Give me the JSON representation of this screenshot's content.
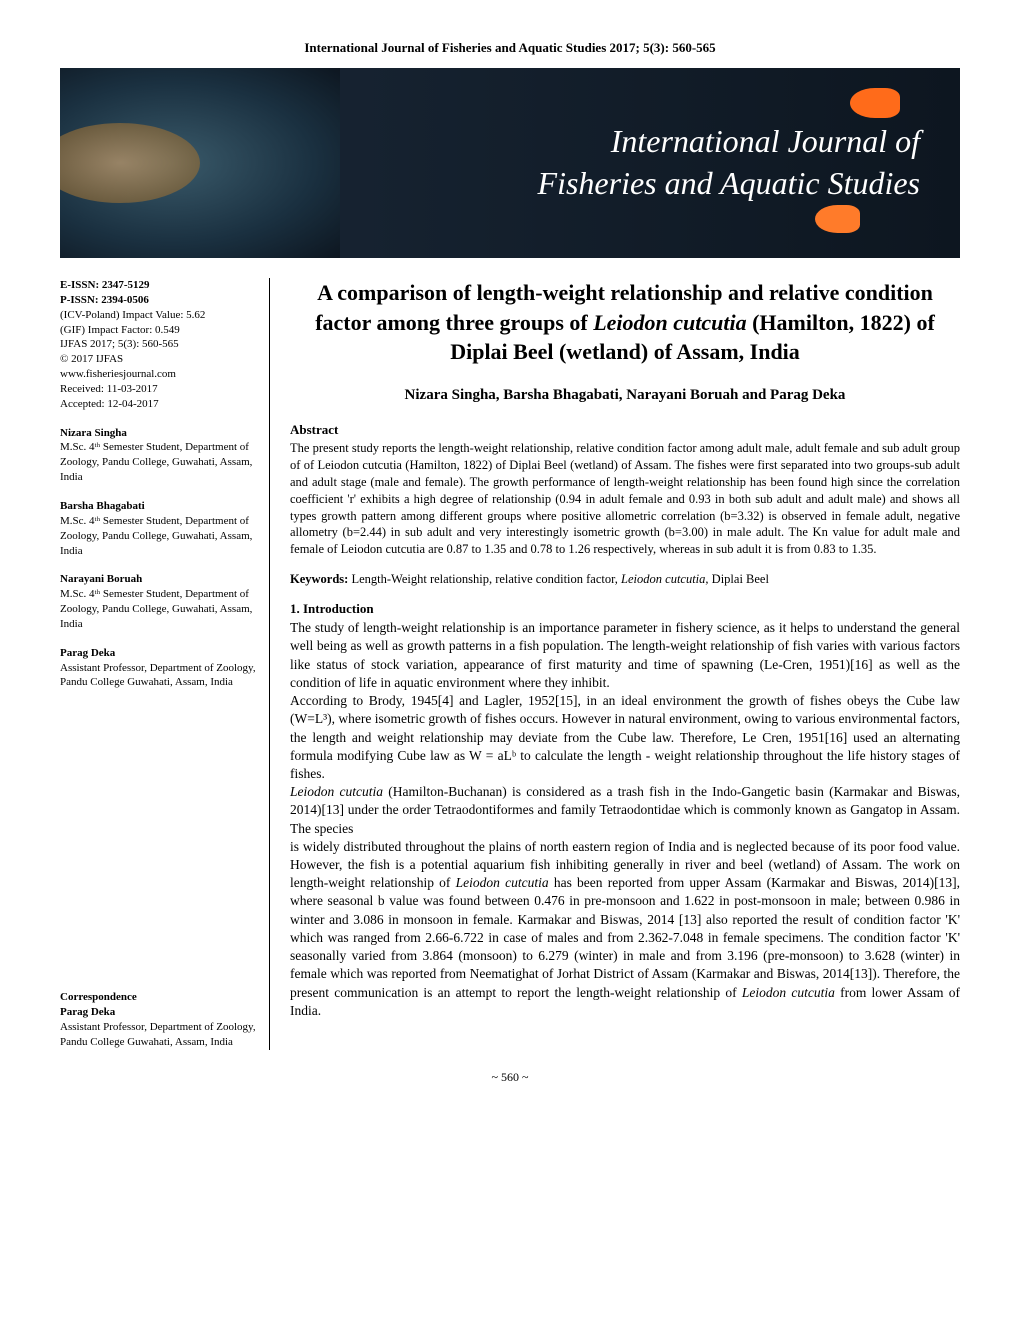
{
  "header": {
    "journal_line": "International Journal of Fisheries and Aquatic Studies 2017; 5(3): 560-565"
  },
  "banner": {
    "title_line1": "International Journal of",
    "title_line2": "Fisheries and Aquatic Studies",
    "bg_gradient_start": "#1a2838",
    "bg_gradient_end": "#0d1620",
    "fish_color": "#ff6b1a"
  },
  "sidebar": {
    "meta": {
      "eissn": "E-ISSN: 2347-5129",
      "pissn": "P-ISSN: 2394-0506",
      "icv": "(ICV-Poland) Impact Value: 5.62",
      "gif": "(GIF) Impact Factor: 0.549",
      "vol": "IJFAS 2017; 5(3): 560-565",
      "copyright": "© 2017 IJFAS",
      "url": "www.fisheriesjournal.com",
      "received": "Received: 11-03-2017",
      "accepted": "Accepted: 12-04-2017"
    },
    "authors": [
      {
        "name": "Nizara Singha",
        "affil": "M.Sc. 4ᵗʰ Semester Student, Department of Zoology, Pandu College, Guwahati, Assam, India"
      },
      {
        "name": "Barsha Bhagabati",
        "affil": "M.Sc. 4ᵗʰ Semester Student, Department of Zoology, Pandu College, Guwahati, Assam, India"
      },
      {
        "name": "Narayani Boruah",
        "affil": "M.Sc. 4ᵗʰ Semester Student, Department of Zoology, Pandu College, Guwahati, Assam, India"
      },
      {
        "name": "Parag Deka",
        "affil": "Assistant Professor, Department of Zoology, Pandu College Guwahati, Assam, India"
      }
    ],
    "correspondence": {
      "label": "Correspondence",
      "name": "Parag Deka",
      "affil": "Assistant Professor, Department of Zoology, Pandu College Guwahati, Assam, India"
    }
  },
  "article": {
    "title_part1": "A comparison of length-weight relationship and relative condition factor among three groups of ",
    "title_italic": "Leiodon cutcutia",
    "title_part2": " (Hamilton, 1822) of Diplai Beel (wetland) of Assam, India",
    "authors_line": "Nizara Singha, Barsha Bhagabati, Narayani Boruah and Parag Deka",
    "abstract_label": "Abstract",
    "abstract_text": "The present study reports the length-weight relationship, relative condition factor among adult male, adult female and sub adult group of of Leiodon cutcutia (Hamilton, 1822) of Diplai Beel (wetland) of Assam. The fishes were first separated into two groups-sub adult and adult stage (male and female). The growth performance of length-weight relationship has been found high since the correlation coefficient 'r' exhibits a high degree of relationship (0.94 in adult female and 0.93 in both sub adult and adult male) and shows all types growth pattern among different groups where positive allometric correlation (b=3.32) is observed in female adult, negative allometry (b=2.44) in sub adult and very interestingly isometric growth (b=3.00) in male adult. The Kn value for adult male and female of Leiodon cutcutia are 0.87 to 1.35 and 0.78 to 1.26 respectively, whereas in sub adult it is from 0.83 to 1.35.",
    "keywords_label": "Keywords:",
    "keywords_text": " Length-Weight relationship, relative condition factor, ",
    "keywords_italic": "Leiodon cutcutia,",
    "keywords_tail": " Diplai Beel",
    "intro_label": "1. Introduction",
    "intro_p1": "The study of length-weight relationship is an importance parameter in fishery science, as it helps to understand the general well being as well as growth patterns in a fish population. The length-weight relationship of fish varies with various factors like status of stock variation, appearance of first maturity and time of spawning (Le-Cren, 1951)[16] as well as the condition of life in aquatic environment where they inhibit.",
    "intro_p2": "According to Brody, 1945[4] and Lagler, 1952[15], in an ideal environment the growth of fishes obeys the Cube law (W=L³), where isometric growth of fishes occurs. However in natural environment, owing to various environmental factors, the length and weight relationship may deviate from the Cube law. Therefore, Le Cren, 1951[16] used an alternating formula modifying Cube law as W = aLᵇ to calculate the length - weight relationship throughout the life history stages of fishes.",
    "intro_p3a": "Leiodon cutcutia",
    "intro_p3b": " (Hamilton-Buchanan) is considered as a trash fish in the Indo-Gangetic basin (Karmakar and Biswas, 2014)[13] under the order Tetraodontiformes and family Tetraodontidae which is commonly known as Gangatop in Assam. The species",
    "intro_p4a": "is widely distributed throughout the plains of north eastern region of India and is neglected because of its poor food value. However, the fish is a potential aquarium fish inhibiting generally in river and beel (wetland) of Assam. The work on length-weight relationship of ",
    "intro_p4b": "Leiodon cutcutia",
    "intro_p4c": " has been reported from upper Assam (Karmakar and Biswas, 2014)[13], where seasonal b value was found between 0.476 in pre-monsoon and 1.622 in post-monsoon in male; between 0.986 in winter and 3.086 in monsoon in female. Karmakar and Biswas, 2014 [13] also reported the result of condition factor 'K' which was ranged from 2.66-6.722 in case of males and from 2.362-7.048 in female specimens. The condition factor 'K' seasonally varied from 3.864 (monsoon) to 6.279 (winter) in male and from 3.196 (pre-monsoon) to 3.628 (winter) in female which was reported from Neematighat of Jorhat District of Assam (Karmakar and Biswas, 2014[13]). Therefore, the present communication is an attempt to report the length-weight relationship of ",
    "intro_p4d": "Leiodon cutcutia",
    "intro_p4e": " from lower Assam of India."
  },
  "page_number": "~ 560 ~"
}
